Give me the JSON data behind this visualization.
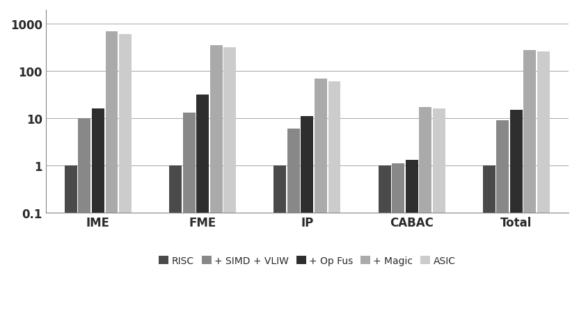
{
  "categories": [
    "IME",
    "FME",
    "IP",
    "CABAC",
    "Total"
  ],
  "series": {
    "RISC": [
      1,
      1,
      1,
      1,
      1
    ],
    "+ SIMD + VLIW": [
      10,
      13,
      6,
      1.1,
      9
    ],
    "+ Op Fus": [
      16,
      32,
      11,
      1.3,
      15
    ],
    "+ Magic": [
      700,
      350,
      70,
      17,
      280
    ],
    "ASIC": [
      600,
      320,
      60,
      16,
      260
    ]
  },
  "series_order": [
    "RISC",
    "+ SIMD + VLIW",
    "+ Op Fus",
    "+ Magic",
    "ASIC"
  ],
  "colors": {
    "RISC": "#4a4a4a",
    "+ SIMD + VLIW": "#888888",
    "+ Op Fus": "#2e2e2e",
    "+ Magic": "#aaaaaa",
    "ASIC": "#cccccc"
  },
  "ylim": [
    0.1,
    2000
  ],
  "yticks": [
    0.1,
    1,
    10,
    100,
    1000
  ],
  "ytick_labels": [
    "0.1",
    "1",
    "10",
    "100",
    "1000"
  ],
  "background_color": "#ffffff",
  "grid_color": "#b0b0b0",
  "bar_width": 0.13,
  "group_width": 0.78
}
